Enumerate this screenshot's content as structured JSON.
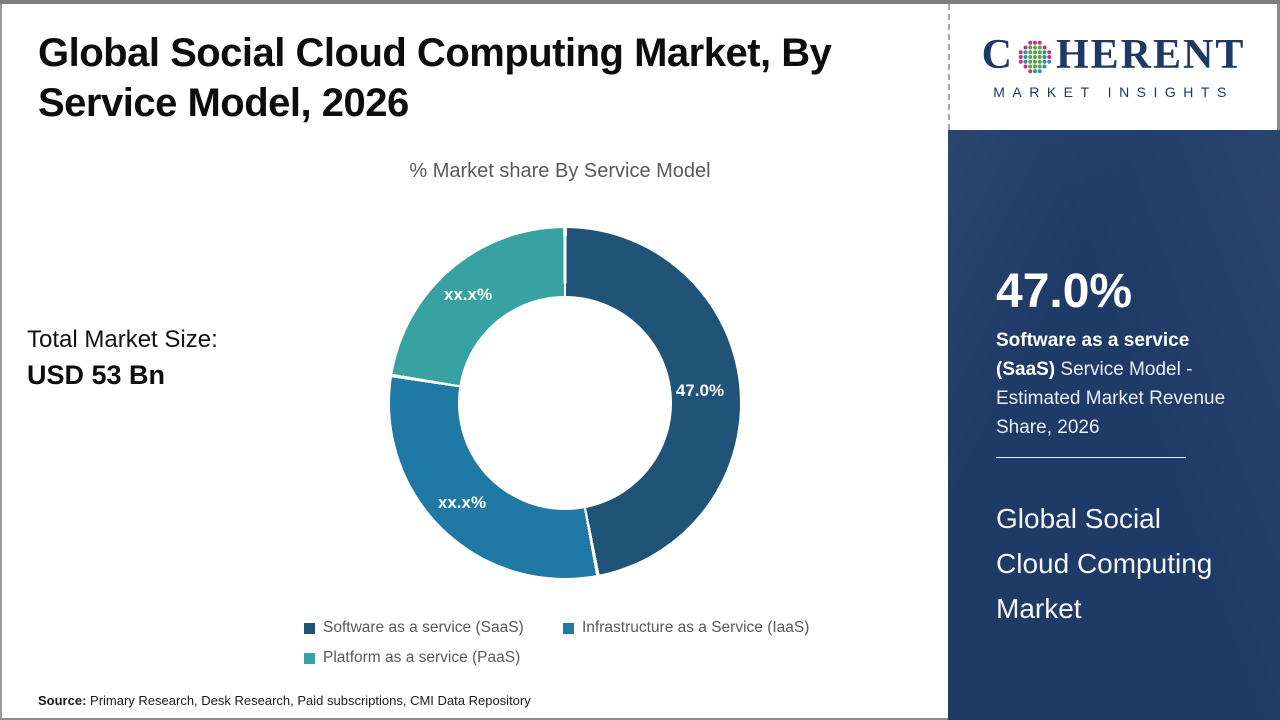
{
  "header": {
    "title_lines": [
      "Global Social Cloud Computing Market, By",
      "Service Model, 2026"
    ]
  },
  "chart_data": {
    "type": "pie",
    "variant": "donut",
    "title": "% Market share By Service Model",
    "start_angle_deg": 0,
    "direction": "clockwise",
    "hole_ratio": 0.61,
    "gap_deg": 1.2,
    "legend_position": "bottom",
    "segments": [
      {
        "label": "Software as a service (SaaS)",
        "value": 47.0,
        "value_estimated": false,
        "display": "47.0%",
        "color": "#1f5378"
      },
      {
        "label": "Infrastructure as a Service (IaaS)",
        "value": 30.5,
        "value_estimated": true,
        "display": "xx.x%",
        "color": "#2078a5"
      },
      {
        "label": "Platform as a service (PaaS)",
        "value": 22.5,
        "value_estimated": true,
        "display": "xx.x%",
        "color": "#38a2a2"
      }
    ]
  },
  "left_panel": {
    "total_label": "Total Market Size:",
    "total_value": "USD 53 Bn"
  },
  "source": {
    "prefix": "Source:",
    "text": "Primary Research, Desk Research, Paid subscriptions, CMI Data Repository"
  },
  "sidebar": {
    "logo": {
      "word_start": "C",
      "word_end": "HERENT",
      "subtitle": "MARKET INSIGHTS"
    },
    "stat_value": "47.0%",
    "stat_bold": "Software as a service (SaaS)",
    "stat_rest": "Service Model - Estimated Market Revenue Share, 2026",
    "footer_title": "Global Social Cloud Computing Market"
  },
  "colors": {
    "sidebar_bg": "#1e3a66",
    "logo_navy": "#1f3864",
    "text_gray": "#595959"
  }
}
